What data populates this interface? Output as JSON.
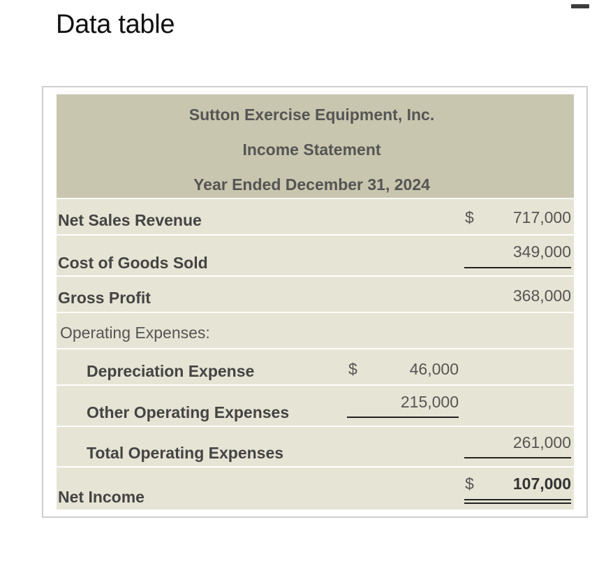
{
  "title": "Data table",
  "statement": {
    "company": "Sutton Exercise Equipment, Inc.",
    "name": "Income Statement",
    "period": "Year Ended December 31, 2024"
  },
  "rows": {
    "net_sales": {
      "label": "Net Sales Revenue",
      "currency": "$",
      "value": "717,000"
    },
    "cogs": {
      "label": "Cost of Goods Sold",
      "value": "349,000"
    },
    "gross_profit": {
      "label": "Gross Profit",
      "value": "368,000"
    },
    "opex_heading": {
      "label": "Operating Expenses:"
    },
    "depreciation": {
      "label": "Depreciation Expense",
      "currency": "$",
      "value": "46,000"
    },
    "other_opex": {
      "label": "Other Operating Expenses",
      "value": "215,000"
    },
    "total_opex": {
      "label": "Total Operating Expenses",
      "value": "261,000"
    },
    "net_income": {
      "label": "Net Income",
      "currency": "$",
      "value": "107,000"
    }
  }
}
